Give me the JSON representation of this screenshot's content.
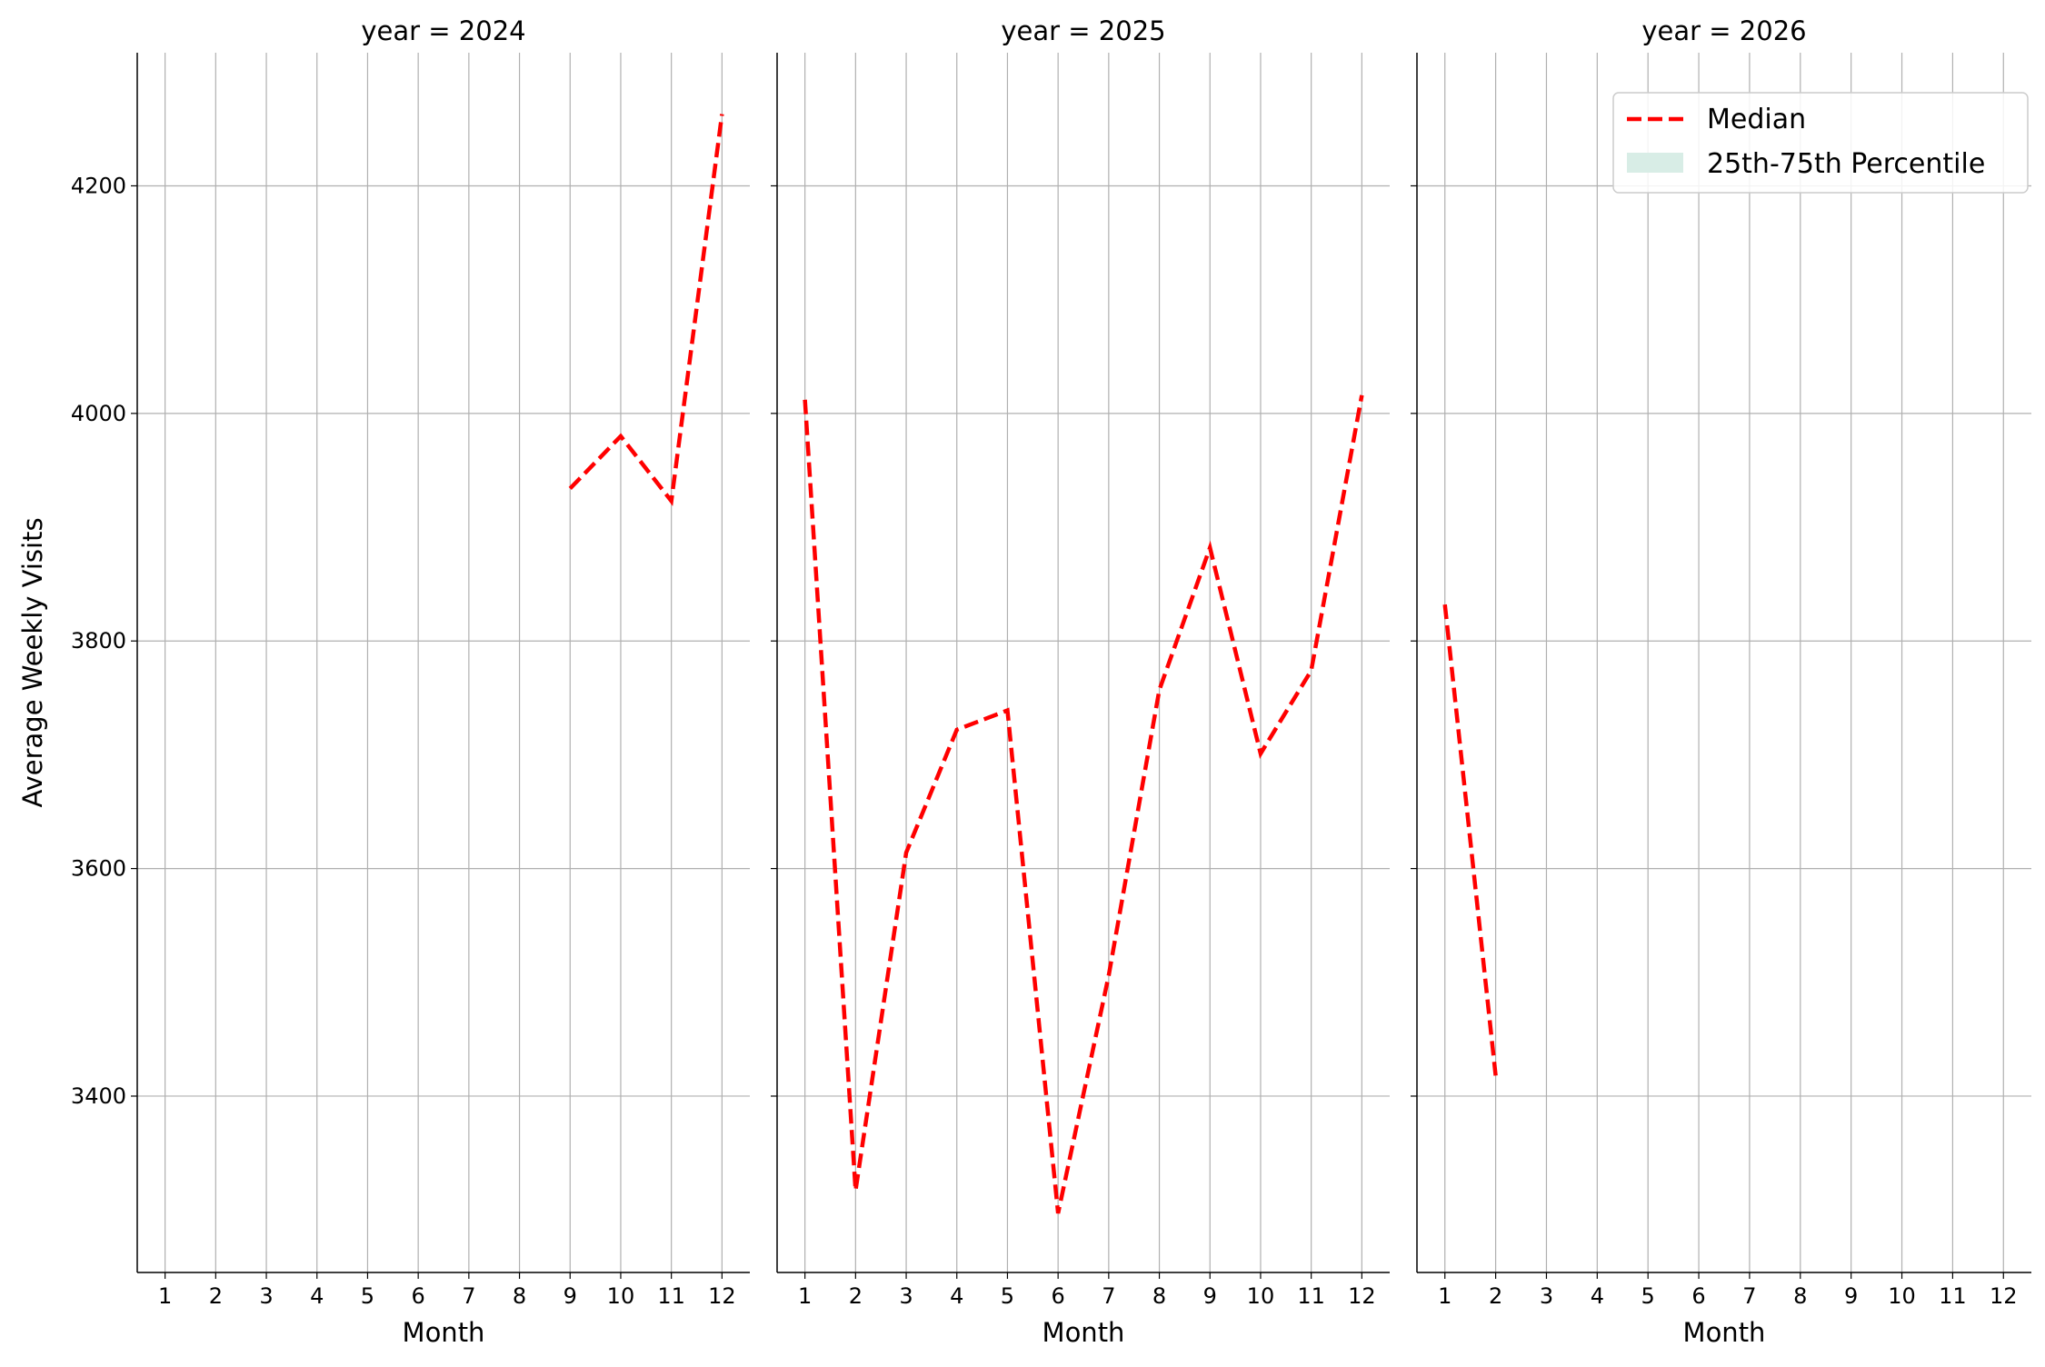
{
  "chart_data": {
    "type": "line",
    "ylabel": "Average Weekly Visits",
    "ylim": [
      3245,
      4317
    ],
    "yticks": [
      3400,
      3600,
      3800,
      4000,
      4200
    ],
    "xticks": [
      1,
      2,
      3,
      4,
      5,
      6,
      7,
      8,
      9,
      10,
      11,
      12
    ],
    "xlim": [
      0.45,
      12.55
    ],
    "grid": true,
    "legend": {
      "placement": "top-right",
      "entries": [
        {
          "label": "Median",
          "style": "dashed-line",
          "color": "#ff0000"
        },
        {
          "label": "25th-75th Percentile",
          "style": "patch",
          "color": "#d8ede6"
        }
      ]
    },
    "panels": [
      {
        "title": "year = 2024",
        "xlabel": "Month",
        "series": [
          {
            "name": "Median",
            "color": "#ff0000",
            "x": [
              9,
              10,
              11,
              12
            ],
            "y": [
              3934,
              3980,
              3923,
              4263
            ]
          }
        ]
      },
      {
        "title": "year = 2025",
        "xlabel": "Month",
        "series": [
          {
            "name": "Median",
            "color": "#ff0000",
            "x": [
              1,
              2,
              3,
              4,
              5,
              6,
              7,
              8,
              9,
              10,
              11,
              12
            ],
            "y": [
              4012,
              3317,
              3614,
              3722,
              3739,
              3297,
              3506,
              3757,
              3882,
              3701,
              3774,
              4016
            ]
          }
        ]
      },
      {
        "title": "year = 2026",
        "xlabel": "Month",
        "series": [
          {
            "name": "Median",
            "color": "#ff0000",
            "x": [
              1,
              2
            ],
            "y": [
              3832,
              3418
            ]
          }
        ]
      }
    ]
  }
}
